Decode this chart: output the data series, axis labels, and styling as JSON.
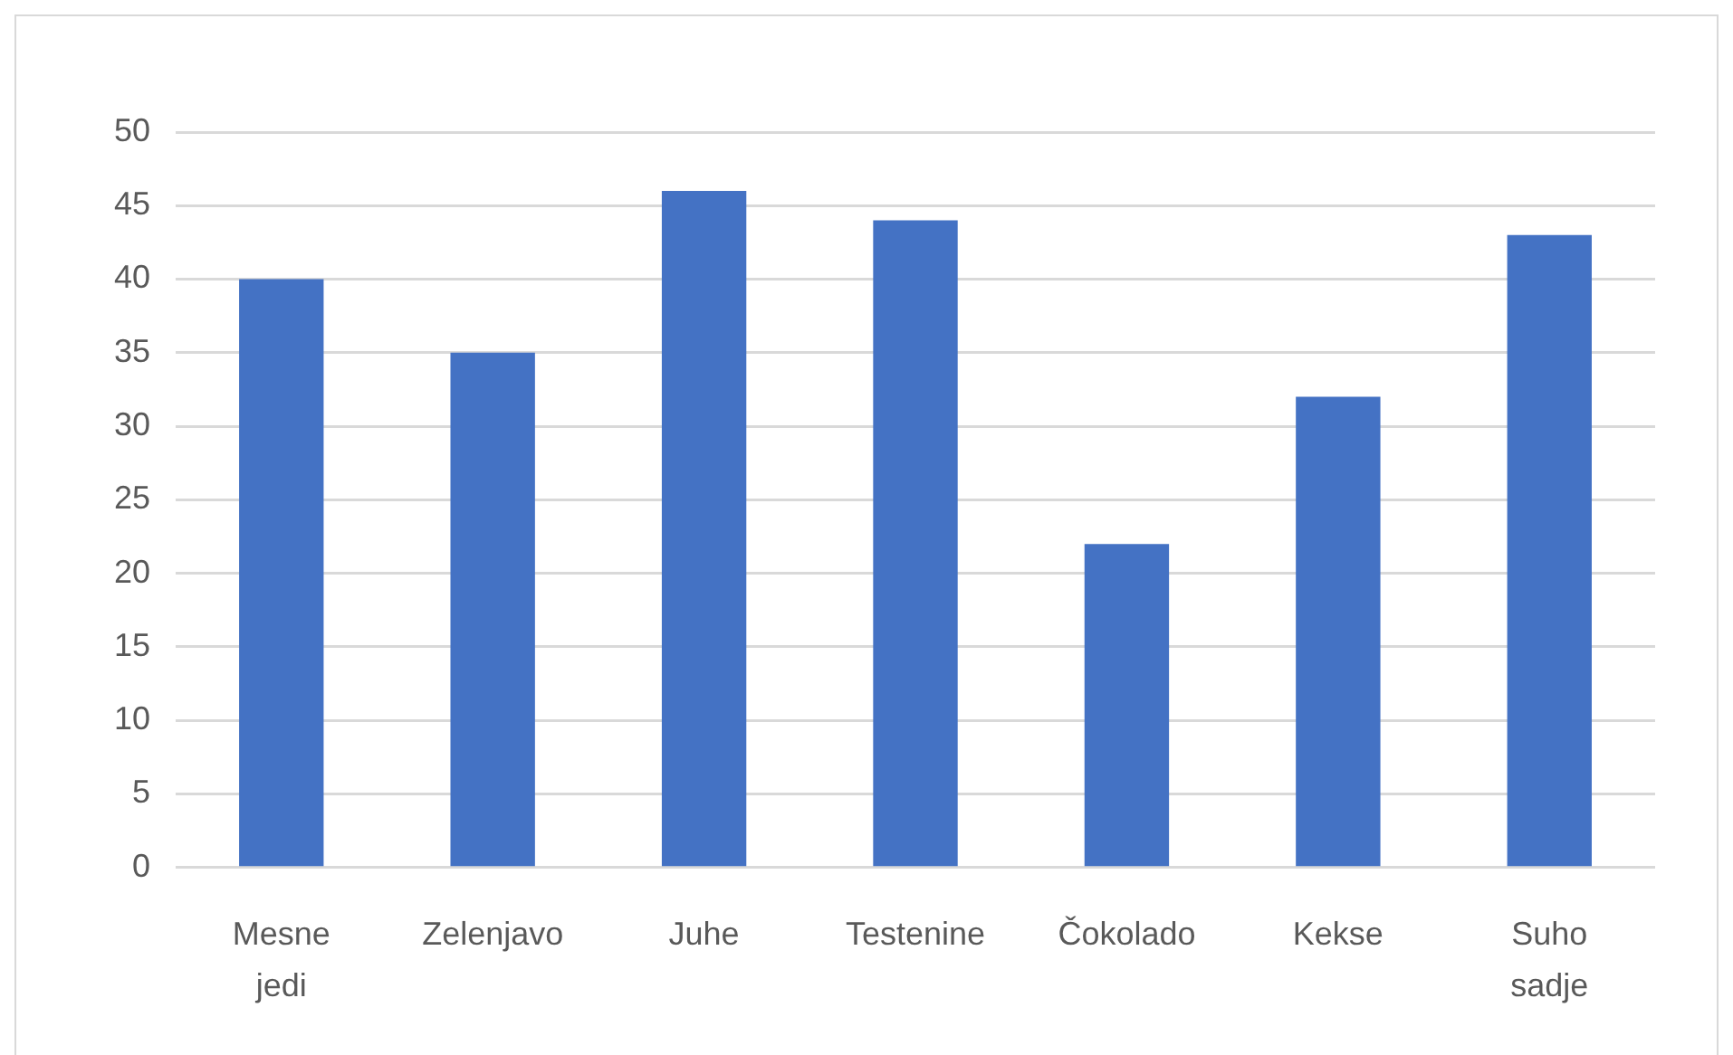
{
  "chart_data": {
    "type": "bar",
    "categories": [
      "Mesne jedi",
      "Zelenjavo",
      "Juhe",
      "Testenine",
      "Čokolado",
      "Kekse",
      "Suho sadje"
    ],
    "values": [
      40,
      35,
      46,
      44,
      22,
      32,
      43
    ],
    "color": "#4472c4",
    "ylim": [
      0,
      50
    ],
    "yticks": [
      0,
      5,
      10,
      15,
      20,
      25,
      30,
      35,
      40,
      45,
      50
    ],
    "grid": "y"
  }
}
